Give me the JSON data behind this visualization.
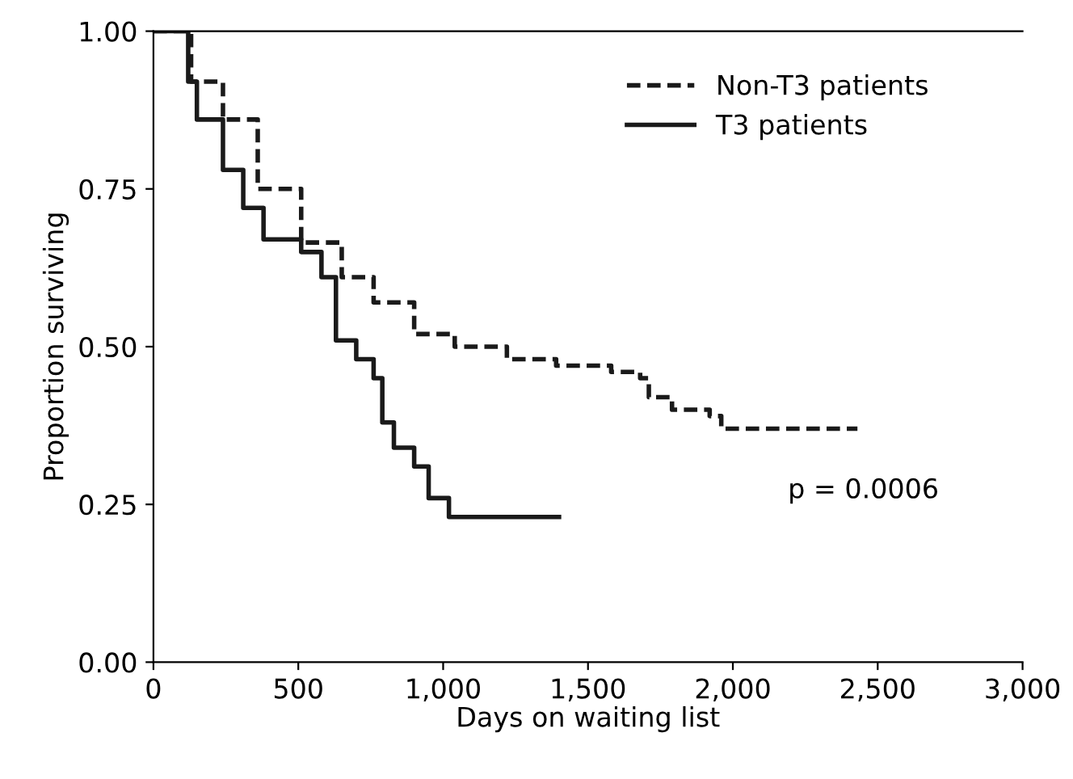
{
  "chart_data": {
    "type": "step",
    "xlabel": "Days on waiting list",
    "ylabel": "Proportion surviving",
    "xlim": [
      0,
      3000
    ],
    "ylim": [
      0,
      1
    ],
    "xticks": [
      0,
      500,
      {
        "value": 1000,
        "label": "1,000"
      },
      {
        "value": 1500,
        "label": "1,500"
      },
      {
        "value": 2000,
        "label": "2,000"
      },
      {
        "value": 2500,
        "label": "2,500"
      },
      {
        "value": 3000,
        "label": "3,000"
      }
    ],
    "yticks": [
      {
        "value": 0,
        "label": "0.00"
      },
      {
        "value": 0.25,
        "label": "0.25"
      },
      {
        "value": 0.5,
        "label": "0.50"
      },
      {
        "value": 0.75,
        "label": "0.75"
      },
      {
        "value": 1,
        "label": "1.00"
      }
    ],
    "series": [
      {
        "name": "Non-T3 patients",
        "color": "#1a1a1a",
        "line_style": "dashed",
        "x": [
          0,
          130,
          240,
          360,
          510,
          650,
          760,
          900,
          1040,
          1220,
          1390,
          1580,
          1680,
          1710,
          1790,
          1920,
          1960,
          2430
        ],
        "values": [
          1,
          0.92,
          0.86,
          0.75,
          0.665,
          0.61,
          0.57,
          0.52,
          0.5,
          0.48,
          0.47,
          0.46,
          0.45,
          0.42,
          0.4,
          0.39,
          0.37,
          0.37
        ]
      },
      {
        "name": "T3 patients",
        "color": "#1a1a1a",
        "line_style": "solid",
        "x": [
          0,
          120,
          150,
          240,
          310,
          380,
          460,
          510,
          580,
          630,
          700,
          760,
          790,
          830,
          900,
          950,
          1020,
          1400
        ],
        "values": [
          1,
          0.92,
          0.86,
          0.78,
          0.72,
          0.67,
          0.67,
          0.65,
          0.61,
          0.51,
          0.48,
          0.45,
          0.38,
          0.34,
          0.31,
          0.26,
          0.23,
          0.23
        ]
      }
    ],
    "legend": "top right",
    "grid": false,
    "annotations": [
      "p = 0.0006"
    ]
  }
}
